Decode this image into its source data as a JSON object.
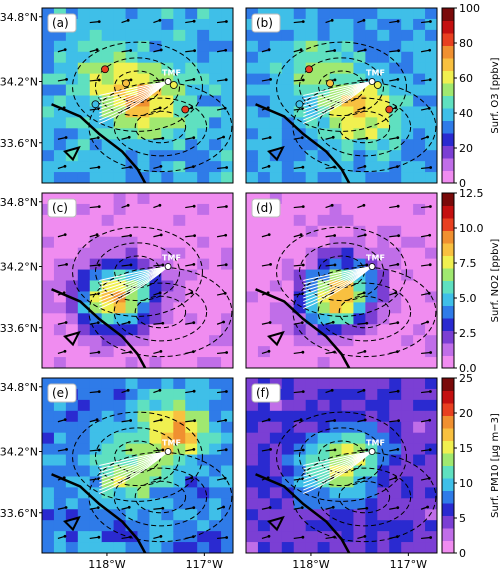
{
  "chart_data": {
    "type": "heatmap",
    "panels": [
      {
        "label": "(a)",
        "variable": "O3",
        "row": 0,
        "col": 0,
        "site": "TMF",
        "base": 38,
        "hot": [
          [
            0.55,
            0.55,
            30
          ],
          [
            0.35,
            0.4,
            20
          ]
        ],
        "markers": true
      },
      {
        "label": "(b)",
        "variable": "O3",
        "row": 0,
        "col": 1,
        "site": "TMF",
        "base": 36,
        "hot": [
          [
            0.6,
            0.6,
            32
          ],
          [
            0.4,
            0.35,
            18
          ]
        ],
        "markers": true
      },
      {
        "label": "(c)",
        "variable": "NO2",
        "row": 1,
        "col": 0,
        "site": "TMF",
        "base": 0.4,
        "hot": [
          [
            0.35,
            0.62,
            6
          ],
          [
            0.45,
            0.55,
            4
          ]
        ],
        "markers": false
      },
      {
        "label": "(d)",
        "variable": "NO2",
        "row": 1,
        "col": 1,
        "site": "TMF",
        "base": 0.4,
        "hot": [
          [
            0.45,
            0.62,
            6
          ],
          [
            0.55,
            0.52,
            4
          ]
        ],
        "markers": false
      },
      {
        "label": "(e)",
        "variable": "PM10",
        "row": 2,
        "col": 0,
        "site": "TMF",
        "base": 8,
        "hot": [
          [
            0.7,
            0.3,
            10
          ],
          [
            0.45,
            0.55,
            6
          ]
        ],
        "markers": false
      },
      {
        "label": "(f)",
        "variable": "PM10",
        "row": 2,
        "col": 1,
        "site": "TMF",
        "base": 5,
        "hot": [
          [
            0.55,
            0.45,
            8
          ],
          [
            0.4,
            0.55,
            5
          ]
        ],
        "markers": false
      }
    ],
    "y_ticks": [
      "34.8°N",
      "34.2°N",
      "33.6°N"
    ],
    "x_ticks": [
      "118°W",
      "117°W"
    ],
    "colorbars": [
      {
        "variable": "O3",
        "label": "Surf. O3 [ppbv]",
        "min": 0,
        "max": 100,
        "ticks": [
          "100",
          "80",
          "60",
          "40",
          "20",
          "0"
        ]
      },
      {
        "variable": "NO2",
        "label": "Surf. NO2 [ppbv]",
        "min": 0,
        "max": 12.5,
        "ticks": [
          "12.5",
          "10.0",
          "7.5",
          "5.0",
          "2.5",
          "0.0"
        ]
      },
      {
        "variable": "PM10",
        "label": "Surf. PM10 [μg m−3]",
        "min": 0,
        "max": 25,
        "ticks": [
          "25",
          "20",
          "15",
          "10",
          "5",
          "0"
        ]
      }
    ],
    "colors": {
      "colormap": [
        "#f08cf0",
        "#c06ee8",
        "#7b3fd4",
        "#2a2ad0",
        "#2f7be8",
        "#3fbfe8",
        "#5fe0c0",
        "#a0e870",
        "#f0f050",
        "#f8c040",
        "#f09030",
        "#e84020",
        "#c41010",
        "#7a0a0a"
      ],
      "coast": "#000000",
      "contour": "#000000",
      "trajectory": "#ffffff"
    }
  }
}
